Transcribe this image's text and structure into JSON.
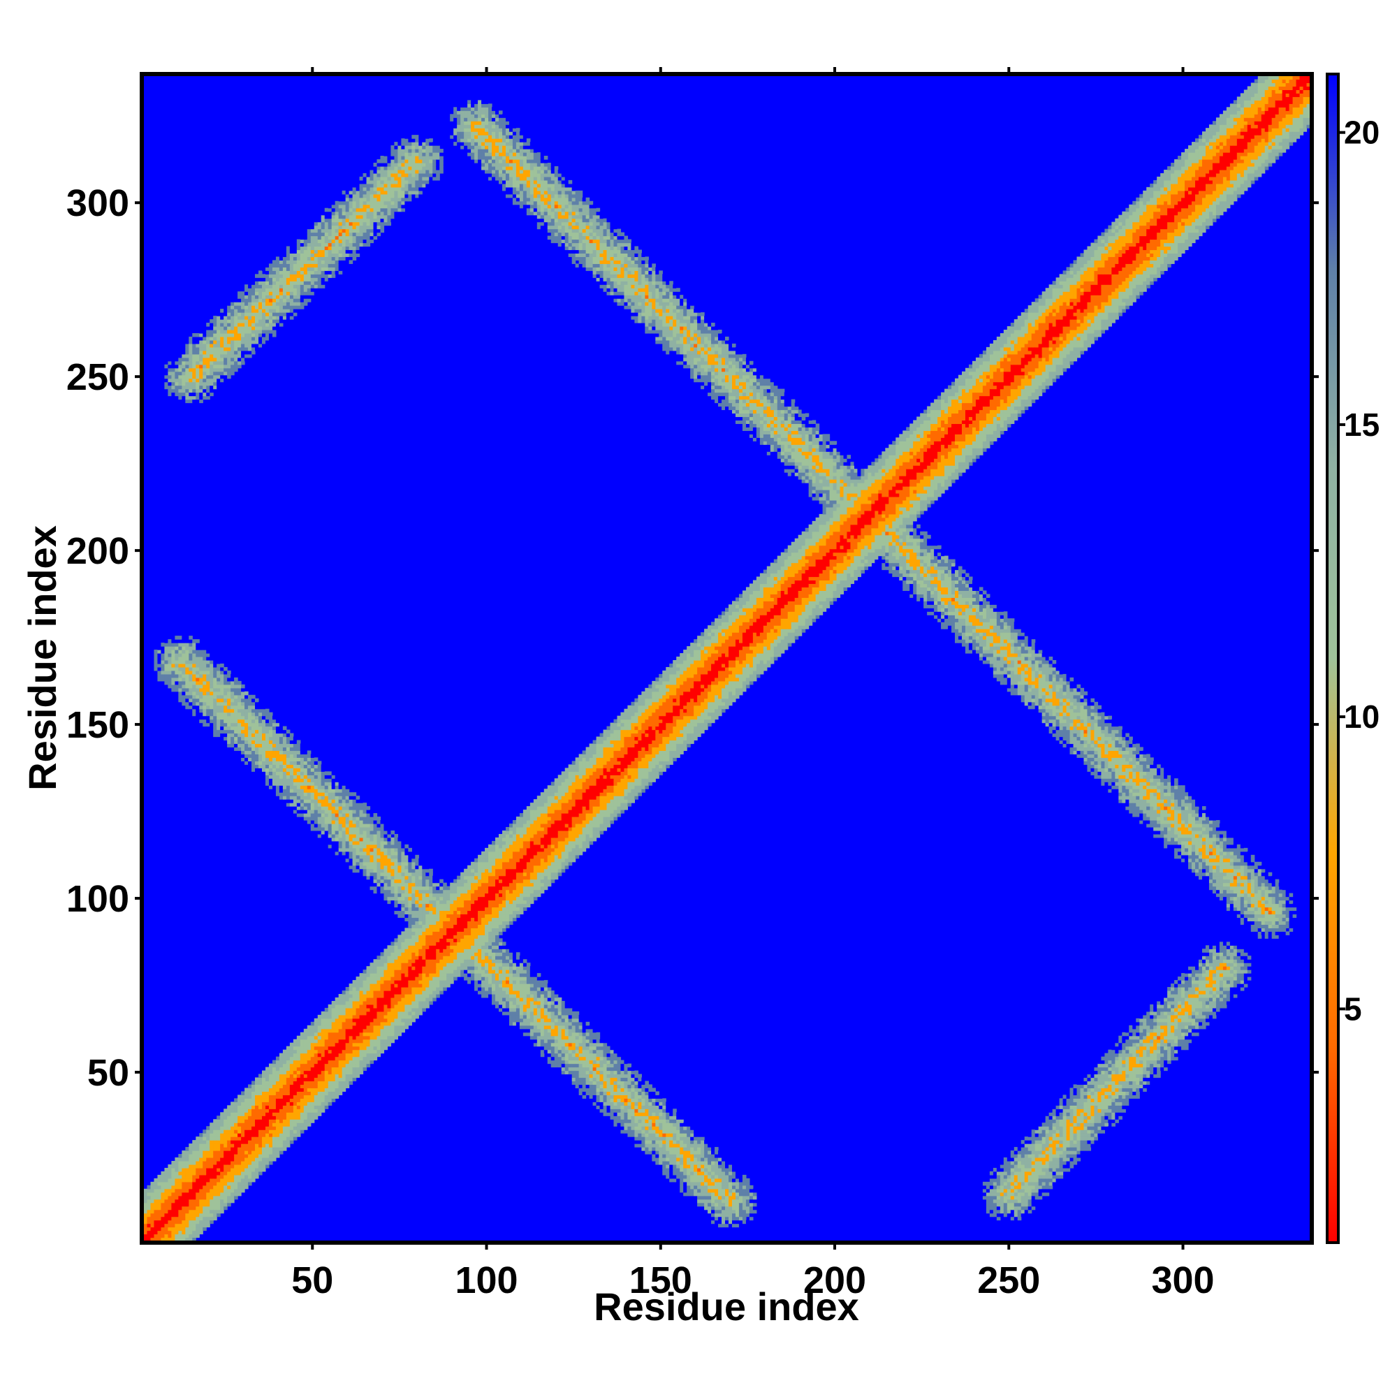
{
  "chart_data": {
    "type": "heatmap",
    "title": "",
    "xlabel": "Residue index",
    "ylabel": "Residue index",
    "xlim": [
      1,
      337
    ],
    "ylim": [
      1,
      337
    ],
    "x_ticks": [
      50,
      100,
      150,
      200,
      250,
      300
    ],
    "y_ticks": [
      50,
      100,
      150,
      200,
      250,
      300
    ],
    "colorbar": {
      "range": [
        1,
        21
      ],
      "ticks": [
        5,
        10,
        15,
        20
      ],
      "colors": [
        "#ff0000",
        "#ff6a00",
        "#ffa500",
        "#9fc29a",
        "#8fb1a3",
        "#5f80a8",
        "#0000ff"
      ],
      "background_color": "#0000ff"
    },
    "diagonal": {
      "from": 1,
      "to": 337
    },
    "bands": [
      {
        "name": "lower-left-antidiagonal",
        "start": [
          12,
          168
        ],
        "end": [
          170,
          13
        ],
        "contact_width": 14
      },
      {
        "name": "upper-right-antidiagonal",
        "start": [
          97,
          322
        ],
        "end": [
          325,
          96
        ],
        "contact_width": 14
      },
      {
        "name": "upper-left-parallel",
        "start": [
          15,
          250
        ],
        "end": [
          80,
          312
        ],
        "contact_width": 14
      },
      {
        "name": "lower-right-parallel",
        "start": [
          250,
          15
        ],
        "end": [
          312,
          80
        ],
        "contact_width": 14
      }
    ],
    "gridlines": false
  }
}
